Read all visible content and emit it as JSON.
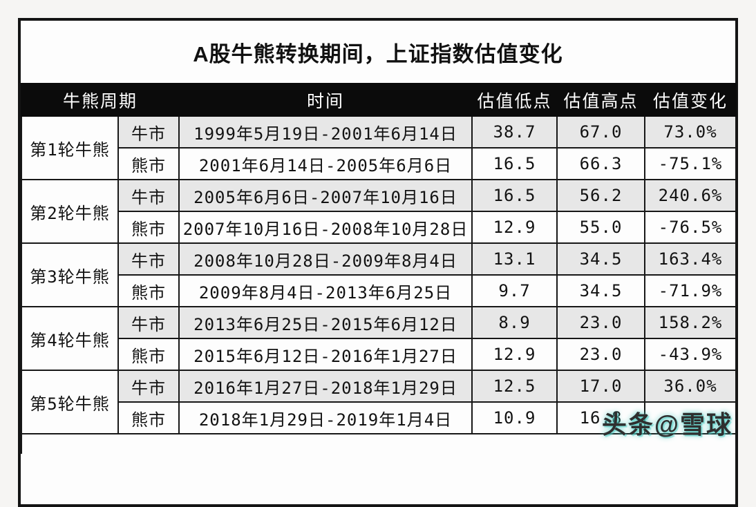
{
  "title": "A股牛熊转换期间，上证指数估值变化",
  "watermark": "头条@雪球",
  "colors": {
    "up_red": "#cb2b2b",
    "down_green": "#27a385",
    "header_bg": "#0b0b0b",
    "header_text": "#ffffff",
    "bull_row_bg": "#e7e7e7",
    "bear_row_bg": "#fdfdfd",
    "border": "#171717"
  },
  "table": {
    "columns": [
      "牛熊周期",
      "时间",
      "估值低点",
      "估值高点",
      "估值变化"
    ],
    "cycles": [
      {
        "label": "第1轮牛熊",
        "bull": {
          "phase": "牛市",
          "date": "1999年5月19日-2001年6月14日",
          "low": "38.7",
          "high": "67.0",
          "change": "73.0%"
        },
        "bear": {
          "phase": "熊市",
          "date": "2001年6月14日-2005年6月6日",
          "low": "16.5",
          "high": "66.3",
          "change": "-75.1%"
        }
      },
      {
        "label": "第2轮牛熊",
        "bull": {
          "phase": "牛市",
          "date": "2005年6月6日-2007年10月16日",
          "low": "16.5",
          "high": "56.2",
          "change": "240.6%"
        },
        "bear": {
          "phase": "熊市",
          "date": "2007年10月16日-2008年10月28日",
          "low": "12.9",
          "high": "55.0",
          "change": "-76.5%"
        }
      },
      {
        "label": "第3轮牛熊",
        "bull": {
          "phase": "牛市",
          "date": "2008年10月28日-2009年8月4日",
          "low": "13.1",
          "high": "34.5",
          "change": "163.4%"
        },
        "bear": {
          "phase": "熊市",
          "date": "2009年8月4日-2013年6月25日",
          "low": "9.7",
          "high": "34.5",
          "change": "-71.9%"
        }
      },
      {
        "label": "第4轮牛熊",
        "bull": {
          "phase": "牛市",
          "date": "2013年6月25日-2015年6月12日",
          "low": "8.9",
          "high": "23.0",
          "change": "158.2%"
        },
        "bear": {
          "phase": "熊市",
          "date": "2015年6月12日-2016年1月27日",
          "low": "12.9",
          "high": "23.0",
          "change": "-43.9%"
        }
      },
      {
        "label": "第5轮牛熊",
        "bull": {
          "phase": "牛市",
          "date": "2016年1月27日-2018年1月29日",
          "low": "12.5",
          "high": "17.0",
          "change": "36.0%"
        },
        "bear": {
          "phase": "熊市",
          "date": "2018年1月29日-2019年1月4日",
          "low": "10.9",
          "high": "16.8",
          "change": ""
        }
      }
    ]
  },
  "chart_data": {
    "type": "table",
    "title": "A股牛熊转换期间，上证指数估值变化",
    "columns": [
      "牛熊周期",
      "时间",
      "估值低点",
      "估值高点",
      "估值变化"
    ],
    "rows": [
      [
        "第1轮牛熊",
        "牛市",
        "1999年5月19日-2001年6月14日",
        38.7,
        67.0,
        "73.0%"
      ],
      [
        "第1轮牛熊",
        "熊市",
        "2001年6月14日-2005年6月6日",
        16.5,
        66.3,
        "-75.1%"
      ],
      [
        "第2轮牛熊",
        "牛市",
        "2005年6月6日-2007年10月16日",
        16.5,
        56.2,
        "240.6%"
      ],
      [
        "第2轮牛熊",
        "熊市",
        "2007年10月16日-2008年10月28日",
        12.9,
        55.0,
        "-76.5%"
      ],
      [
        "第3轮牛熊",
        "牛市",
        "2008年10月28日-2009年8月4日",
        13.1,
        34.5,
        "163.4%"
      ],
      [
        "第3轮牛熊",
        "熊市",
        "2009年8月4日-2013年6月25日",
        9.7,
        34.5,
        "-71.9%"
      ],
      [
        "第4轮牛熊",
        "牛市",
        "2013年6月25日-2015年6月12日",
        8.9,
        23.0,
        "158.2%"
      ],
      [
        "第4轮牛熊",
        "熊市",
        "2015年6月12日-2016年1月27日",
        12.9,
        23.0,
        "-43.9%"
      ],
      [
        "第5轮牛熊",
        "牛市",
        "2016年1月27日-2018年1月29日",
        12.5,
        17.0,
        "36.0%"
      ],
      [
        "第5轮牛熊",
        "熊市",
        "2018年1月29日-2019年1月4日",
        10.9,
        16.8,
        ""
      ]
    ],
    "notes": "估值变化 column colored red for gains, green for losses; last cell obscured by watermark 头条@雪球"
  }
}
